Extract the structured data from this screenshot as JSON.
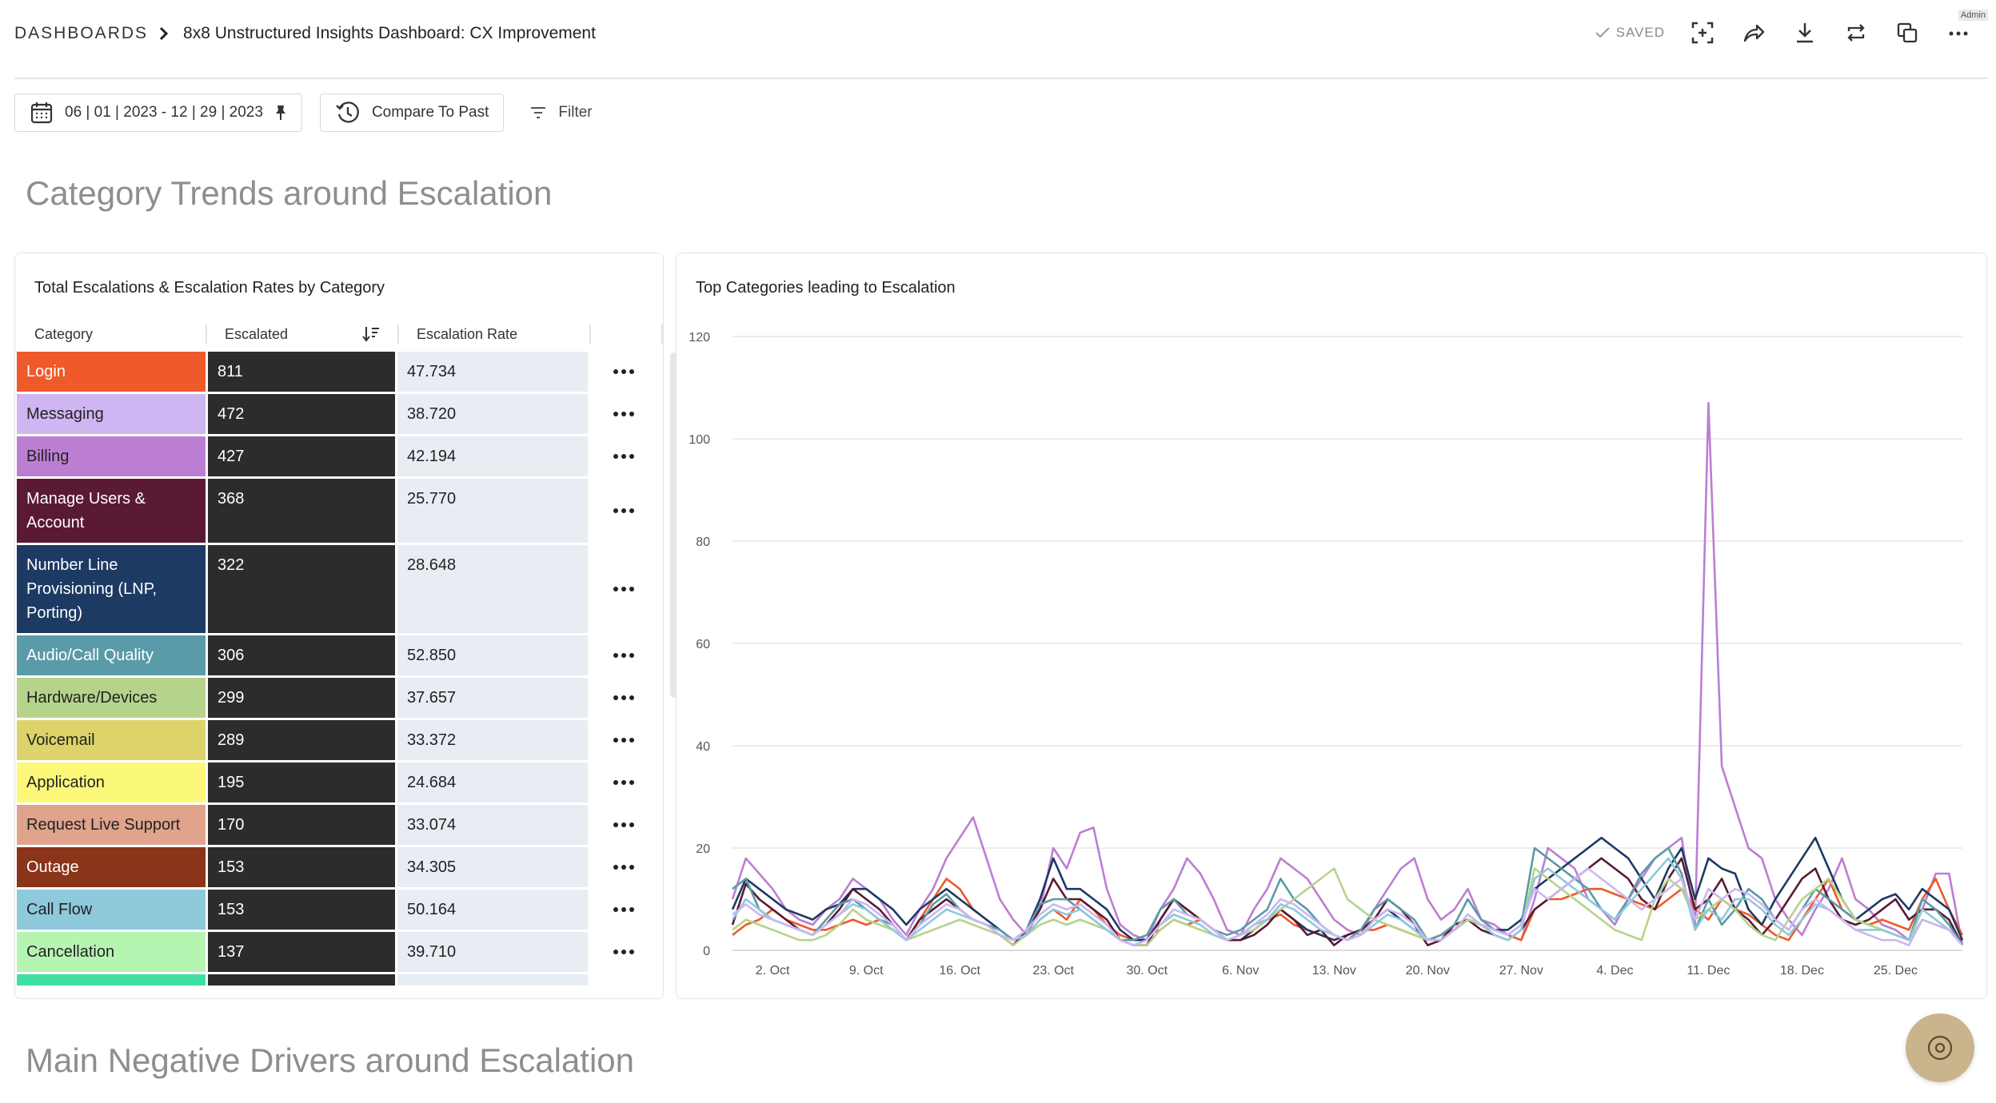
{
  "breadcrumb": {
    "root": "DASHBOARDS",
    "title": "8x8 Unstructured Insights Dashboard: CX Improvement"
  },
  "header": {
    "saved_label": "SAVED",
    "admin_label": "Admin",
    "icons": [
      "fullscreen-icon",
      "share-icon",
      "download-icon",
      "refresh-icon",
      "duplicate-icon",
      "more-icon"
    ]
  },
  "toolbar": {
    "date_range": "06 | 01 | 2023 - 12 | 29 | 2023",
    "compare_label": "Compare To Past",
    "filter_label": "Filter"
  },
  "sections": {
    "trends_title": "Category Trends around Escalation",
    "drivers_title": "Main Negative Drivers around Escalation"
  },
  "table_card": {
    "title": "Total Escalations & Escalation Rates by Category",
    "columns": [
      "Category",
      "Escalated",
      "Escalation Rate"
    ],
    "rows": [
      {
        "category": "Login",
        "escalated": "811",
        "rate": "47.734",
        "color": "#ee5a2a",
        "text": "#ffffff"
      },
      {
        "category": "Messaging",
        "escalated": "472",
        "rate": "38.720",
        "color": "#cdb6f2",
        "text": "#222222"
      },
      {
        "category": "Billing",
        "escalated": "427",
        "rate": "42.194",
        "color": "#bc7ed2",
        "text": "#222222"
      },
      {
        "category": "Manage Users & Account",
        "escalated": "368",
        "rate": "25.770",
        "color": "#5a1a33",
        "text": "#ffffff"
      },
      {
        "category": "Number Line Provisioning (LNP, Porting)",
        "escalated": "322",
        "rate": "28.648",
        "color": "#1d3a63",
        "text": "#ffffff"
      },
      {
        "category": "Audio/Call Quality",
        "escalated": "306",
        "rate": "52.850",
        "color": "#5b9aa8",
        "text": "#ffffff"
      },
      {
        "category": "Hardware/Devices",
        "escalated": "299",
        "rate": "37.657",
        "color": "#b6d38b",
        "text": "#222222"
      },
      {
        "category": "Voicemail",
        "escalated": "289",
        "rate": "33.372",
        "color": "#dcd36a",
        "text": "#222222"
      },
      {
        "category": "Application",
        "escalated": "195",
        "rate": "24.684",
        "color": "#fbf87a",
        "text": "#222222"
      },
      {
        "category": "Request Live Support",
        "escalated": "170",
        "rate": "33.074",
        "color": "#e0a38b",
        "text": "#222222"
      },
      {
        "category": "Outage",
        "escalated": "153",
        "rate": "34.305",
        "color": "#8a3419",
        "text": "#ffffff"
      },
      {
        "category": "Call Flow",
        "escalated": "153",
        "rate": "50.164",
        "color": "#8ec9dc",
        "text": "#222222"
      },
      {
        "category": "Cancellation",
        "escalated": "137",
        "rate": "39.710",
        "color": "#b6f5b1",
        "text": "#222222"
      }
    ]
  },
  "chart_card": {
    "title": "Top Categories leading to Escalation"
  },
  "chart_data": {
    "type": "line",
    "x": [
      "2023-09-29",
      "2023-09-30",
      "2023-10-01",
      "2023-10-02",
      "2023-10-03",
      "2023-10-04",
      "2023-10-05",
      "2023-10-06",
      "2023-10-07",
      "2023-10-08",
      "2023-10-09",
      "2023-10-10",
      "2023-10-11",
      "2023-10-12",
      "2023-10-13",
      "2023-10-14",
      "2023-10-15",
      "2023-10-16",
      "2023-10-17",
      "2023-10-18",
      "2023-10-19",
      "2023-10-20",
      "2023-10-21",
      "2023-10-22",
      "2023-10-23",
      "2023-10-24",
      "2023-10-25",
      "2023-10-26",
      "2023-10-27",
      "2023-10-28",
      "2023-10-29",
      "2023-10-30",
      "2023-10-31",
      "2023-11-01",
      "2023-11-02",
      "2023-11-03",
      "2023-11-04",
      "2023-11-05",
      "2023-11-06",
      "2023-11-07",
      "2023-11-08",
      "2023-11-09",
      "2023-11-10",
      "2023-11-11",
      "2023-11-12",
      "2023-11-13",
      "2023-11-14",
      "2023-11-15",
      "2023-11-16",
      "2023-11-17",
      "2023-11-18",
      "2023-11-19",
      "2023-11-20",
      "2023-11-21",
      "2023-11-22",
      "2023-11-23",
      "2023-11-24",
      "2023-11-25",
      "2023-11-26",
      "2023-11-27",
      "2023-11-28",
      "2023-11-29",
      "2023-11-30",
      "2023-12-01",
      "2023-12-02",
      "2023-12-03",
      "2023-12-04",
      "2023-12-05",
      "2023-12-06",
      "2023-12-07",
      "2023-12-08",
      "2023-12-09",
      "2023-12-10",
      "2023-12-11",
      "2023-12-12",
      "2023-12-13",
      "2023-12-14",
      "2023-12-15",
      "2023-12-16",
      "2023-12-17",
      "2023-12-18",
      "2023-12-19",
      "2023-12-20",
      "2023-12-21",
      "2023-12-22",
      "2023-12-23",
      "2023-12-24",
      "2023-12-25",
      "2023-12-26",
      "2023-12-27",
      "2023-12-28",
      "2023-12-29",
      "2023-12-30"
    ],
    "x_tick_labels": [
      "2. Oct",
      "9. Oct",
      "16. Oct",
      "23. Oct",
      "30. Oct",
      "6. Nov",
      "13. Nov",
      "20. Nov",
      "27. Nov",
      "4. Dec",
      "11. Dec",
      "18. Dec",
      "25. Dec"
    ],
    "x_tick_dates": [
      "2023-10-02",
      "2023-10-09",
      "2023-10-16",
      "2023-10-23",
      "2023-10-30",
      "2023-11-06",
      "2023-11-13",
      "2023-11-20",
      "2023-11-27",
      "2023-12-04",
      "2023-12-11",
      "2023-12-18",
      "2023-12-25"
    ],
    "y_ticks": [
      0,
      20,
      40,
      60,
      80,
      100,
      120
    ],
    "ylim": [
      0,
      120
    ],
    "grid": true,
    "series": [
      {
        "color": "#bc7ed2",
        "values": [
          10,
          18,
          15,
          12,
          8,
          6,
          5,
          8,
          10,
          14,
          12,
          10,
          6,
          3,
          8,
          12,
          18,
          22,
          26,
          18,
          10,
          6,
          3,
          8,
          20,
          16,
          23,
          24,
          12,
          5,
          3,
          2,
          8,
          12,
          18,
          15,
          10,
          4,
          3,
          8,
          12,
          18,
          16,
          14,
          10,
          6,
          4,
          3,
          8,
          12,
          16,
          18,
          10,
          6,
          8,
          12,
          6,
          5,
          3,
          2,
          10,
          20,
          18,
          16,
          10,
          8,
          5,
          10,
          14,
          18,
          20,
          22,
          5,
          107,
          36,
          28,
          20,
          18,
          10,
          6,
          3,
          8,
          12,
          18,
          10,
          8,
          5,
          4,
          2,
          8,
          15,
          15,
          1
        ]
      },
      {
        "color": "#ee5a2a",
        "values": [
          3,
          5,
          6,
          8,
          6,
          5,
          4,
          4,
          5,
          6,
          5,
          6,
          4,
          2,
          6,
          10,
          14,
          12,
          8,
          6,
          4,
          2,
          3,
          6,
          8,
          6,
          10,
          8,
          5,
          3,
          2,
          3,
          4,
          6,
          5,
          6,
          4,
          2,
          3,
          5,
          6,
          7,
          5,
          4,
          3,
          2,
          3,
          4,
          4,
          5,
          4,
          3,
          2,
          3,
          4,
          6,
          5,
          4,
          3,
          2,
          8,
          10,
          10,
          11,
          12,
          12,
          11,
          10,
          9,
          8,
          10,
          12,
          8,
          6,
          10,
          8,
          7,
          5,
          3,
          2,
          6,
          10,
          14,
          8,
          6,
          5,
          6,
          5,
          4,
          10,
          14,
          8,
          3
        ]
      },
      {
        "color": "#1d3a63",
        "values": [
          8,
          14,
          12,
          10,
          8,
          7,
          6,
          8,
          9,
          12,
          12,
          10,
          8,
          5,
          8,
          10,
          12,
          10,
          8,
          6,
          4,
          2,
          4,
          10,
          18,
          12,
          12,
          10,
          8,
          4,
          2,
          2,
          6,
          10,
          8,
          6,
          4,
          2,
          2,
          4,
          6,
          8,
          6,
          4,
          3,
          2,
          3,
          4,
          6,
          8,
          6,
          4,
          2,
          2,
          4,
          6,
          5,
          4,
          4,
          6,
          12,
          14,
          16,
          18,
          20,
          22,
          20,
          18,
          14,
          10,
          16,
          20,
          10,
          18,
          16,
          15,
          8,
          5,
          10,
          14,
          18,
          22,
          16,
          10,
          6,
          8,
          10,
          11,
          8,
          12,
          10,
          8,
          2
        ]
      },
      {
        "color": "#5a1a33",
        "values": [
          5,
          13,
          10,
          8,
          6,
          4,
          3,
          5,
          8,
          12,
          10,
          8,
          5,
          2,
          6,
          8,
          10,
          8,
          6,
          5,
          3,
          1,
          4,
          8,
          14,
          10,
          10,
          8,
          6,
          2,
          1,
          1,
          6,
          10,
          8,
          6,
          4,
          2,
          2,
          3,
          5,
          8,
          6,
          3,
          4,
          1,
          3,
          4,
          6,
          10,
          8,
          5,
          1,
          2,
          5,
          6,
          4,
          3,
          2,
          4,
          8,
          10,
          12,
          14,
          16,
          18,
          16,
          14,
          10,
          8,
          14,
          18,
          8,
          10,
          14,
          8,
          6,
          3,
          6,
          10,
          14,
          16,
          10,
          6,
          5,
          6,
          8,
          10,
          6,
          8,
          8,
          6,
          1
        ]
      },
      {
        "color": "#5b9aa8",
        "values": [
          12,
          14,
          8,
          6,
          5,
          4,
          3,
          6,
          9,
          10,
          8,
          6,
          5,
          2,
          5,
          9,
          11,
          8,
          6,
          5,
          4,
          2,
          4,
          9,
          10,
          10,
          8,
          6,
          4,
          2,
          2,
          3,
          8,
          10,
          7,
          6,
          4,
          3,
          4,
          6,
          8,
          14,
          10,
          8,
          5,
          3,
          2,
          4,
          8,
          10,
          8,
          6,
          2,
          3,
          5,
          10,
          6,
          4,
          3,
          5,
          20,
          18,
          16,
          14,
          12,
          8,
          6,
          10,
          15,
          18,
          20,
          15,
          4,
          10,
          5,
          8,
          12,
          10,
          6,
          4,
          8,
          12,
          10,
          8,
          6,
          5,
          4,
          3,
          2,
          10,
          8,
          5,
          1
        ]
      },
      {
        "color": "#b6d38b",
        "values": [
          4,
          6,
          5,
          4,
          3,
          2,
          2,
          3,
          5,
          8,
          6,
          5,
          4,
          2,
          3,
          4,
          5,
          6,
          5,
          4,
          3,
          1,
          3,
          5,
          6,
          5,
          6,
          5,
          4,
          2,
          1,
          1,
          4,
          6,
          5,
          4,
          3,
          2,
          3,
          4,
          6,
          8,
          10,
          12,
          14,
          16,
          10,
          8,
          6,
          5,
          4,
          3,
          2,
          2,
          4,
          6,
          5,
          3,
          2,
          4,
          16,
          14,
          12,
          10,
          8,
          6,
          4,
          3,
          2,
          10,
          14,
          12,
          6,
          8,
          10,
          8,
          5,
          3,
          2,
          6,
          10,
          12,
          14,
          10,
          6,
          5,
          4,
          3,
          2,
          6,
          5,
          4,
          1
        ]
      },
      {
        "color": "#8ec9dc",
        "values": [
          6,
          10,
          8,
          6,
          5,
          4,
          3,
          5,
          7,
          9,
          8,
          6,
          4,
          2,
          4,
          6,
          8,
          7,
          6,
          5,
          3,
          2,
          3,
          6,
          8,
          7,
          8,
          6,
          4,
          2,
          1,
          2,
          5,
          7,
          6,
          5,
          3,
          2,
          3,
          5,
          6,
          9,
          8,
          6,
          4,
          3,
          2,
          3,
          5,
          7,
          6,
          4,
          2,
          2,
          4,
          7,
          5,
          3,
          2,
          4,
          14,
          16,
          14,
          12,
          10,
          8,
          6,
          9,
          12,
          15,
          18,
          14,
          4,
          8,
          6,
          10,
          10,
          8,
          5,
          3,
          6,
          9,
          8,
          6,
          4,
          4,
          4,
          3,
          2,
          8,
          6,
          4,
          1
        ]
      },
      {
        "color": "#cdb6f2",
        "values": [
          7,
          9,
          7,
          6,
          5,
          4,
          3,
          5,
          7,
          10,
          9,
          7,
          5,
          2,
          5,
          7,
          9,
          8,
          6,
          5,
          3,
          2,
          4,
          7,
          9,
          8,
          9,
          7,
          5,
          2,
          1,
          2,
          5,
          8,
          7,
          6,
          4,
          2,
          3,
          5,
          7,
          10,
          9,
          7,
          5,
          3,
          2,
          3,
          6,
          8,
          7,
          5,
          2,
          2,
          4,
          7,
          5,
          4,
          3,
          5,
          12,
          10,
          12,
          14,
          16,
          14,
          12,
          10,
          8,
          10,
          12,
          14,
          6,
          12,
          10,
          12,
          11,
          9,
          6,
          4,
          8,
          10,
          8,
          6,
          4,
          3,
          2,
          2,
          1,
          6,
          5,
          4,
          1
        ]
      }
    ]
  }
}
